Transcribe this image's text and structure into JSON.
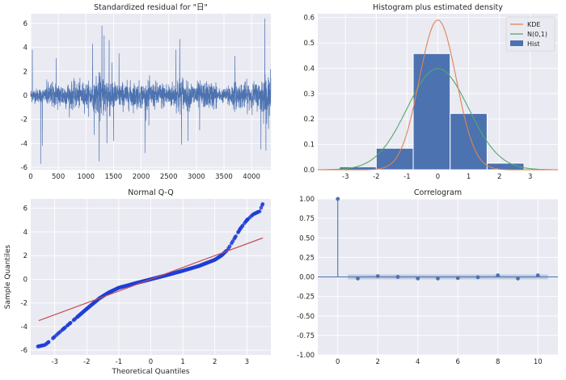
{
  "figure": {
    "background": "#ffffff",
    "axes_face": "#eaeaf2",
    "grid_color": "#ffffff",
    "blue": "#4c72b0",
    "orange": "#dd8452",
    "green": "#55a868",
    "red": "#c44e52",
    "qq_points": "#1f3fd6"
  },
  "chart_data": [
    {
      "type": "line",
      "title": "Standardized residual for \"日\"",
      "xlabel": "",
      "ylabel": "",
      "xlim": [
        0,
        4350
      ],
      "ylim": [
        -6.2,
        6.8
      ],
      "xticks": [
        0,
        500,
        1000,
        1500,
        2000,
        2500,
        3000,
        3500,
        4000
      ],
      "yticks": [
        -6,
        -4,
        -2,
        0,
        2,
        4,
        6
      ],
      "n_points": 4350,
      "series_summary": {
        "low_volatility_segments": [
          [
            0,
            280
          ],
          [
            3380,
            3560
          ]
        ],
        "high_volatility_segments": [
          [
            1180,
            1500
          ],
          [
            2640,
            2760
          ],
          [
            4160,
            4350
          ]
        ],
        "spikes": [
          {
            "x": 30,
            "y": 3.8
          },
          {
            "x": 180,
            "y": -5.7
          },
          {
            "x": 210,
            "y": -4.2
          },
          {
            "x": 460,
            "y": 3.1
          },
          {
            "x": 1120,
            "y": 4.3
          },
          {
            "x": 1150,
            "y": -3.3
          },
          {
            "x": 1240,
            "y": -5.5
          },
          {
            "x": 1290,
            "y": 5.8
          },
          {
            "x": 1330,
            "y": 5.0
          },
          {
            "x": 1380,
            "y": -4.0
          },
          {
            "x": 1420,
            "y": 4.6
          },
          {
            "x": 1500,
            "y": -3.8
          },
          {
            "x": 1600,
            "y": 3.5
          },
          {
            "x": 2070,
            "y": -4.8
          },
          {
            "x": 2140,
            "y": -2.5
          },
          {
            "x": 2630,
            "y": 3.8
          },
          {
            "x": 2700,
            "y": 4.7
          },
          {
            "x": 2730,
            "y": -4.1
          },
          {
            "x": 2850,
            "y": -3.8
          },
          {
            "x": 3060,
            "y": -2.9
          },
          {
            "x": 3700,
            "y": 3.3
          },
          {
            "x": 4170,
            "y": -4.5
          },
          {
            "x": 4240,
            "y": 6.4
          },
          {
            "x": 4260,
            "y": -4.6
          }
        ]
      }
    },
    {
      "type": "bar",
      "title": "Histogram plus estimated density",
      "xlim": [
        -3.9,
        3.9
      ],
      "ylim": [
        0,
        0.615
      ],
      "xticks": [
        -3,
        -2,
        -1,
        0,
        1,
        2,
        3
      ],
      "yticks": [
        0.0,
        0.1,
        0.2,
        0.3,
        0.4,
        0.5,
        0.6
      ],
      "bins": [
        {
          "from": -3.2,
          "to": -2.0,
          "value": 0.012
        },
        {
          "from": -2.0,
          "to": -0.8,
          "value": 0.085
        },
        {
          "from": -0.8,
          "to": 0.4,
          "value": 0.458
        },
        {
          "from": 0.4,
          "to": 1.6,
          "value": 0.222
        },
        {
          "from": 1.6,
          "to": 2.8,
          "value": 0.026
        }
      ],
      "kde": {
        "peak_x": 0.0,
        "peak": 0.59,
        "scale": 0.6
      },
      "normal": {
        "mean": 0,
        "sd": 1
      },
      "legend": [
        {
          "label": "KDE",
          "style": "orange-line"
        },
        {
          "label": "N(0,1)",
          "style": "green-line"
        },
        {
          "label": "Hist",
          "style": "blue-box"
        }
      ],
      "legend_position": "top-right"
    },
    {
      "type": "scatter",
      "title": "Normal Q-Q",
      "xlabel": "Theoretical Quantiles",
      "ylabel": "Sample Quantiles",
      "xlim": [
        -3.75,
        3.75
      ],
      "ylim": [
        -6.4,
        6.8
      ],
      "xticks": [
        -3,
        -2,
        -1,
        0,
        1,
        2,
        3
      ],
      "yticks": [
        -6,
        -4,
        -2,
        0,
        2,
        4,
        6
      ],
      "reference_line": {
        "x": [
          -3.5,
          3.5
        ],
        "y": [
          -3.5,
          3.5
        ]
      },
      "quantile_curve": [
        [
          -3.55,
          -5.7
        ],
        [
          -3.3,
          -5.55
        ],
        [
          -3.1,
          -5.1
        ],
        [
          -2.9,
          -4.6
        ],
        [
          -2.6,
          -3.9
        ],
        [
          -2.3,
          -3.2
        ],
        [
          -2.0,
          -2.5
        ],
        [
          -1.6,
          -1.6
        ],
        [
          -1.3,
          -1.1
        ],
        [
          -1.0,
          -0.72
        ],
        [
          -0.5,
          -0.35
        ],
        [
          0.0,
          0.0
        ],
        [
          0.5,
          0.35
        ],
        [
          1.0,
          0.72
        ],
        [
          1.5,
          1.12
        ],
        [
          2.0,
          1.65
        ],
        [
          2.2,
          2.0
        ],
        [
          2.4,
          2.5
        ],
        [
          2.6,
          3.4
        ],
        [
          2.8,
          4.3
        ],
        [
          3.0,
          5.0
        ],
        [
          3.2,
          5.5
        ],
        [
          3.4,
          5.75
        ],
        [
          3.5,
          6.4
        ]
      ]
    },
    {
      "type": "bar",
      "title": "Correlogram",
      "xlim": [
        -1,
        11
      ],
      "ylim": [
        -1.0,
        1.0
      ],
      "xticks": [
        0,
        2,
        4,
        6,
        8,
        10
      ],
      "yticks": [
        -1.0,
        -0.75,
        -0.5,
        -0.25,
        0.0,
        0.25,
        0.5,
        0.75,
        1.0
      ],
      "lags": [
        0,
        1,
        2,
        3,
        4,
        5,
        6,
        7,
        8,
        9,
        10
      ],
      "values": [
        1.0,
        -0.02,
        0.01,
        0.0,
        -0.02,
        -0.02,
        -0.015,
        -0.005,
        0.02,
        -0.02,
        0.02
      ],
      "confidence_band": 0.03
    }
  ]
}
